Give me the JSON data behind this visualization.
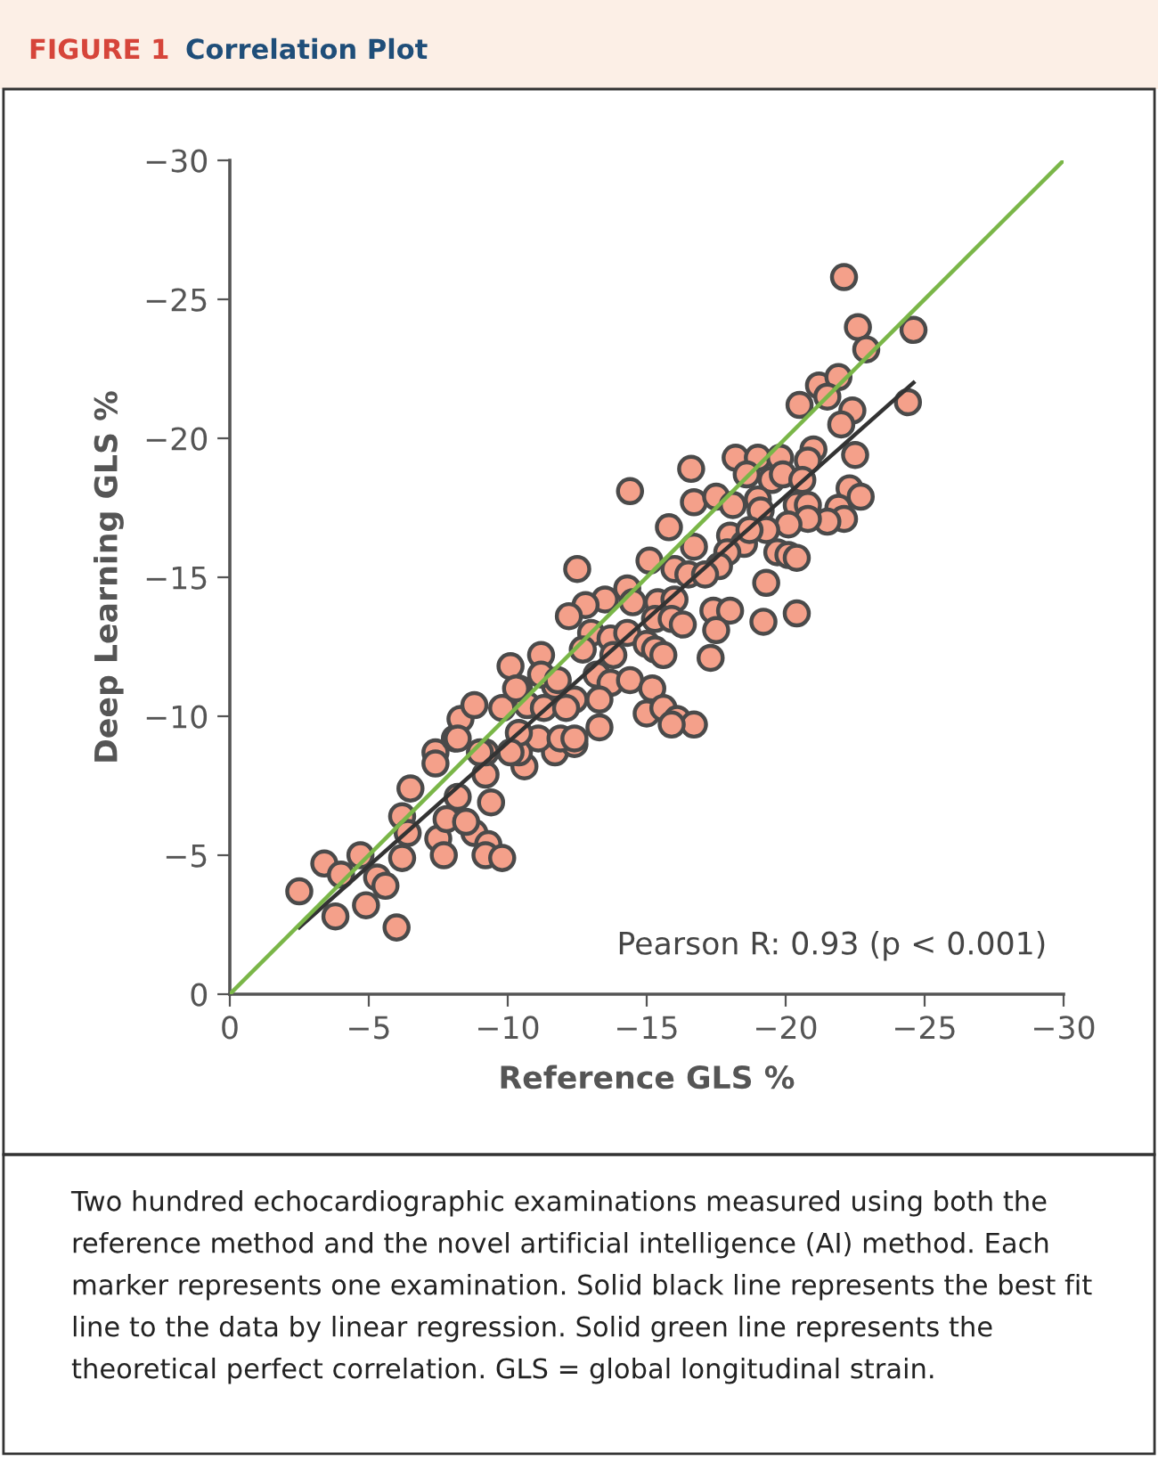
{
  "chart_data": {
    "type": "scatter",
    "title": "Correlation Plot",
    "xlabel": "Reference GLS %",
    "ylabel": "Deep Learning GLS %",
    "annotations": [
      "FIGURE 1",
      "Pearson R: 0.93 (p < 0.001)",
      "Two hundred echocardiographic examinations measured using both the reference method and the novel artificial intelligence (AI) method. Each marker represents one examination. Solid black line represents the best fit line to the data by linear regression. Solid green line represents the theoretical perfect correlation. GLS = global longitudinal strain."
    ],
    "xlim": [
      0,
      -30
    ],
    "ylim": [
      0,
      -30
    ],
    "xticks": [
      0,
      {
        "value": -5,
        "label": "−5"
      },
      {
        "value": -10,
        "label": "−10"
      },
      {
        "value": -15,
        "label": "−15"
      },
      {
        "value": -20,
        "label": "−20"
      },
      {
        "value": -25,
        "label": "−25"
      },
      {
        "value": -30,
        "label": "−30"
      }
    ],
    "yticks": [
      0,
      {
        "value": -5,
        "label": "−5"
      },
      {
        "value": -10,
        "label": "−10"
      },
      {
        "value": -15,
        "label": "−15"
      },
      {
        "value": -20,
        "label": "−20"
      },
      {
        "value": -25,
        "label": "−25"
      },
      {
        "value": -30,
        "label": "−30"
      }
    ],
    "grid": false,
    "legend": false,
    "series": [
      {
        "type": "scatter",
        "marker": "circle",
        "color": "#f4a08a",
        "x": [
          -2.5,
          -3.4,
          -3.8,
          -4.0,
          -4.9,
          -4.7,
          -5.3,
          -5.6,
          -6.0,
          -6.2,
          -6.5,
          -6.4,
          -6.2,
          -7.4,
          -7.4,
          -8.1,
          -8.3,
          -8.8,
          -7.5,
          -7.7,
          -7.8,
          -8.2,
          -8.8,
          -8.5,
          -9.4,
          -9.3,
          -9.2,
          -9.8,
          -9.2,
          -9.2,
          -9.8,
          -10.6,
          -10.4,
          -10.4,
          -11.7,
          -11.1,
          -12.4,
          -11.9,
          -10.7,
          -11.7,
          -14.4,
          -16.6,
          -18.2,
          -16.7,
          -17.5,
          -18.1,
          -15.8,
          -16.7,
          -18.0,
          -18.5,
          -17.9,
          -17.6,
          -15.1,
          -16.0,
          -16.5,
          -17.1,
          -12.5,
          -14.3,
          -13.5,
          -12.8,
          -12.2,
          -14.5,
          -15.4,
          -16.0,
          -15.3,
          -15.9,
          -16.3,
          -17.4,
          -18.0,
          -17.5,
          -13.0,
          -13.7,
          -14.3,
          -12.7,
          -13.8,
          -15.0,
          -15.3,
          -15.6,
          -17.3,
          -11.2,
          -10.1,
          -11.2,
          -11.8,
          -13.2,
          -13.7,
          -14.4,
          -15.2,
          -10.3,
          -12.4,
          -13.3,
          -11.3,
          -12.1,
          -15.0,
          -15.6,
          -16.1,
          -16.7,
          -15.9,
          -13.3,
          -8.2,
          -10.4,
          -12.4,
          -9.0,
          -10.1,
          -22.1,
          -22.6,
          -24.6,
          -22.9,
          -21.2,
          -21.9,
          -21.5,
          -20.5,
          -22.4,
          -22.0,
          -24.4,
          -22.5,
          -21.0,
          -20.8,
          -19.0,
          -19.8,
          -18.6,
          -19.5,
          -19.9,
          -20.6,
          -19.0,
          -19.1,
          -20.4,
          -20.8,
          -22.3,
          -22.7,
          -21.9,
          -22.1,
          -21.5,
          -20.8,
          -20.1,
          -19.3,
          -18.7,
          -19.7,
          -20.1,
          -20.4,
          -19.3,
          -19.2,
          -20.4
        ],
        "values": [
          -3.7,
          -4.7,
          -2.8,
          -4.3,
          -3.2,
          -5.0,
          -4.2,
          -3.9,
          -2.4,
          -6.4,
          -7.4,
          -5.8,
          -4.9,
          -8.7,
          -8.3,
          -9.2,
          -9.9,
          -10.4,
          -5.6,
          -5.0,
          -6.3,
          -7.1,
          -5.8,
          -6.2,
          -6.9,
          -5.4,
          -5.0,
          -4.9,
          -7.9,
          -8.7,
          -10.3,
          -8.2,
          -8.7,
          -11.0,
          -8.7,
          -9.2,
          -9.0,
          -9.2,
          -10.4,
          -11.1,
          -18.1,
          -18.9,
          -19.3,
          -17.7,
          -17.9,
          -17.6,
          -16.8,
          -16.1,
          -16.5,
          -16.2,
          -15.9,
          -15.4,
          -15.6,
          -15.3,
          -15.1,
          -15.1,
          -15.3,
          -14.6,
          -14.2,
          -14.0,
          -13.6,
          -14.1,
          -14.1,
          -14.2,
          -13.5,
          -13.5,
          -13.3,
          -13.8,
          -13.8,
          -13.1,
          -13.0,
          -12.8,
          -13.0,
          -12.4,
          -12.2,
          -12.6,
          -12.4,
          -12.2,
          -12.1,
          -12.2,
          -11.8,
          -11.5,
          -11.3,
          -11.5,
          -11.2,
          -11.3,
          -11.0,
          -11.0,
          -10.6,
          -10.6,
          -10.3,
          -10.3,
          -10.1,
          -10.3,
          -9.9,
          -9.7,
          -9.7,
          -9.6,
          -9.2,
          -9.4,
          -9.2,
          -8.7,
          -8.7,
          -25.8,
          -24.0,
          -23.9,
          -23.2,
          -21.9,
          -22.2,
          -21.5,
          -21.2,
          -21.0,
          -20.5,
          -21.3,
          -19.4,
          -19.6,
          -19.2,
          -19.3,
          -19.3,
          -18.7,
          -18.5,
          -18.7,
          -18.5,
          -17.8,
          -17.4,
          -17.6,
          -17.6,
          -18.2,
          -17.9,
          -17.5,
          -17.1,
          -17.0,
          -17.1,
          -16.9,
          -16.7,
          -16.7,
          -15.9,
          -15.8,
          -15.7,
          -14.8,
          -13.4,
          -13.7
        ]
      },
      {
        "type": "line",
        "color": "#333333",
        "x": [
          -2.5,
          -24.6
        ],
        "values": [
          -2.4,
          -22.0
        ]
      },
      {
        "type": "line",
        "color": "#7ab648",
        "x": [
          0,
          -30
        ],
        "values": [
          0,
          -30
        ]
      }
    ]
  }
}
